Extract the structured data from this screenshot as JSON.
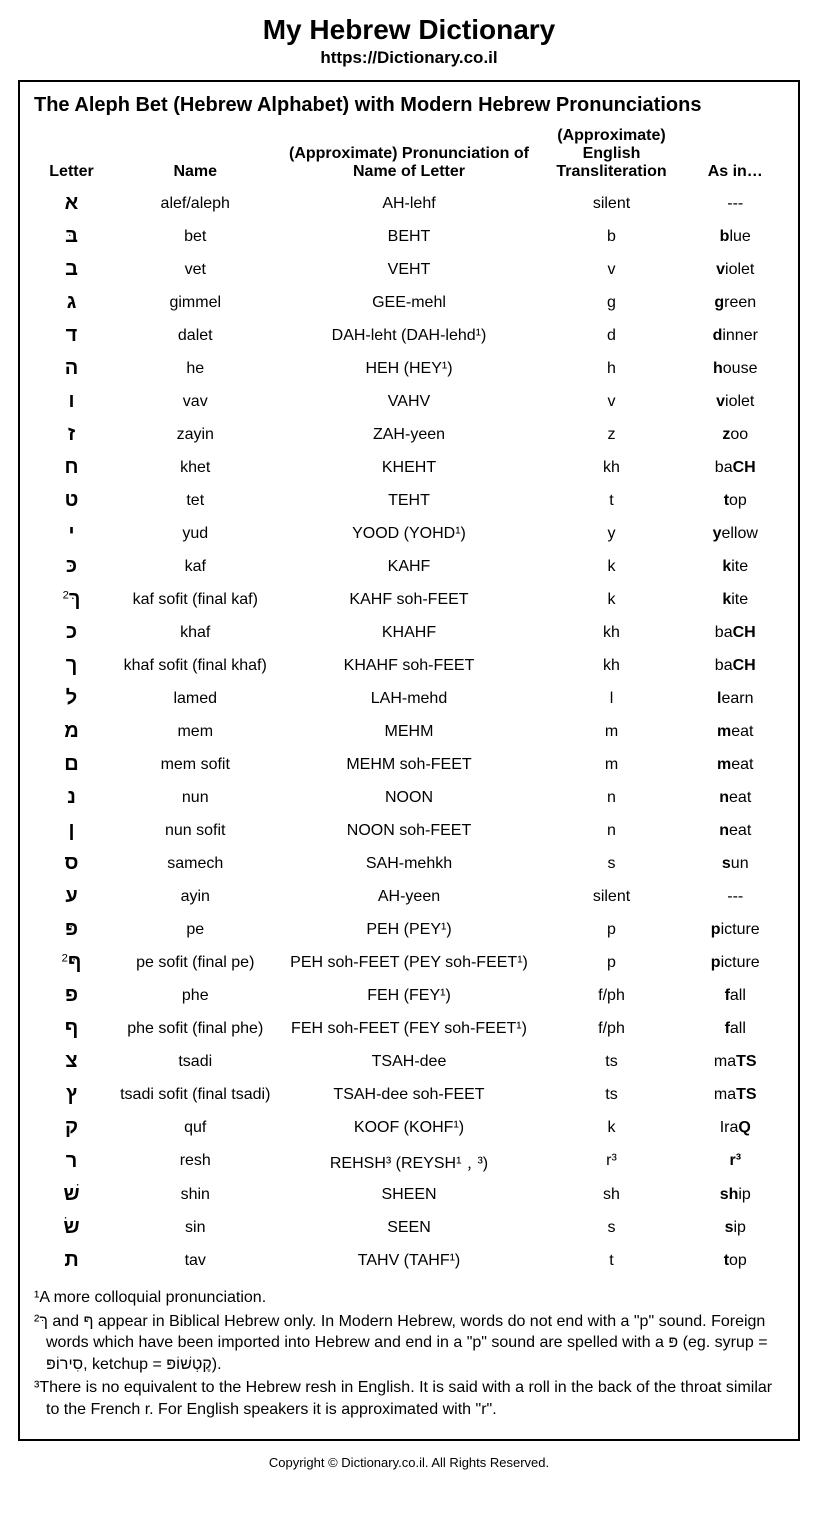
{
  "header": {
    "title": "My Hebrew Dictionary",
    "subtitle": "https://Dictionary.co.il"
  },
  "box": {
    "title": "The Aleph Bet (Hebrew Alphabet) with Modern Hebrew Pronunciations"
  },
  "columns": {
    "letter": "Letter",
    "name": "Name",
    "pron": "(Approximate) Pronunciation of Name of Letter",
    "trans": "(Approximate) English Transliteration",
    "asin": "As in…"
  },
  "rows": [
    {
      "letter": "א",
      "sup": "",
      "name": "alef/aleph",
      "pron": "AH-lehf",
      "trans": "silent",
      "asin_pre": "---",
      "asin_b": "",
      "asin_post": ""
    },
    {
      "letter": "בּ",
      "sup": "",
      "name": "bet",
      "pron": "BEHT",
      "trans": "b",
      "asin_pre": "",
      "asin_b": "b",
      "asin_post": "lue"
    },
    {
      "letter": "ב",
      "sup": "",
      "name": "vet",
      "pron": "VEHT",
      "trans": "v",
      "asin_pre": "",
      "asin_b": "v",
      "asin_post": "iolet"
    },
    {
      "letter": "ג",
      "sup": "",
      "name": "gimmel",
      "pron": "GEE-mehl",
      "trans": "g",
      "asin_pre": "",
      "asin_b": "g",
      "asin_post": "reen"
    },
    {
      "letter": "ד",
      "sup": "",
      "name": "dalet",
      "pron": "DAH-leht (DAH-lehd¹)",
      "trans": "d",
      "asin_pre": "",
      "asin_b": "d",
      "asin_post": "inner"
    },
    {
      "letter": "ה",
      "sup": "",
      "name": "he",
      "pron": "HEH (HEY¹)",
      "trans": "h",
      "asin_pre": "",
      "asin_b": "h",
      "asin_post": "ouse"
    },
    {
      "letter": "ו",
      "sup": "",
      "name": "vav",
      "pron": "VAHV",
      "trans": "v",
      "asin_pre": "",
      "asin_b": "v",
      "asin_post": "iolet"
    },
    {
      "letter": "ז",
      "sup": "",
      "name": "zayin",
      "pron": "ZAH-yeen",
      "trans": "z",
      "asin_pre": "",
      "asin_b": "z",
      "asin_post": "oo"
    },
    {
      "letter": "ח",
      "sup": "",
      "name": "khet",
      "pron": "KHEHT",
      "trans": "kh",
      "asin_pre": "ba",
      "asin_b": "CH",
      "asin_post": ""
    },
    {
      "letter": "ט",
      "sup": "",
      "name": "tet",
      "pron": "TEHT",
      "trans": "t",
      "asin_pre": "",
      "asin_b": "t",
      "asin_post": "op"
    },
    {
      "letter": "י",
      "sup": "",
      "name": "yud",
      "pron": "YOOD (YOHD¹)",
      "trans": "y",
      "asin_pre": "",
      "asin_b": "y",
      "asin_post": "ellow"
    },
    {
      "letter": "כּ",
      "sup": "",
      "name": "kaf",
      "pron": "KAHF",
      "trans": "k",
      "asin_pre": "",
      "asin_b": "k",
      "asin_post": "ite"
    },
    {
      "letter": "ךּ",
      "sup": "2",
      "name": "kaf sofit (final kaf)",
      "pron": "KAHF soh-FEET",
      "trans": "k",
      "asin_pre": "",
      "asin_b": "k",
      "asin_post": "ite"
    },
    {
      "letter": "כ",
      "sup": "",
      "name": "khaf",
      "pron": "KHAHF",
      "trans": "kh",
      "asin_pre": "ba",
      "asin_b": "CH",
      "asin_post": ""
    },
    {
      "letter": "ך",
      "sup": "",
      "name": "khaf sofit (final khaf)",
      "pron": "KHAHF soh-FEET",
      "trans": "kh",
      "asin_pre": "ba",
      "asin_b": "CH",
      "asin_post": ""
    },
    {
      "letter": "ל",
      "sup": "",
      "name": "lamed",
      "pron": "LAH-mehd",
      "trans": "l",
      "asin_pre": "",
      "asin_b": "l",
      "asin_post": "earn"
    },
    {
      "letter": "מ",
      "sup": "",
      "name": "mem",
      "pron": "MEHM",
      "trans": "m",
      "asin_pre": "",
      "asin_b": "m",
      "asin_post": "eat"
    },
    {
      "letter": "ם",
      "sup": "",
      "name": "mem sofit",
      "pron": "MEHM soh-FEET",
      "trans": "m",
      "asin_pre": "",
      "asin_b": "m",
      "asin_post": "eat"
    },
    {
      "letter": "נ",
      "sup": "",
      "name": "nun",
      "pron": "NOON",
      "trans": "n",
      "asin_pre": "",
      "asin_b": "n",
      "asin_post": "eat"
    },
    {
      "letter": "ן",
      "sup": "",
      "name": "nun sofit",
      "pron": "NOON soh-FEET",
      "trans": "n",
      "asin_pre": "",
      "asin_b": "n",
      "asin_post": "eat"
    },
    {
      "letter": "ס",
      "sup": "",
      "name": "samech",
      "pron": "SAH-mehkh",
      "trans": "s",
      "asin_pre": "",
      "asin_b": "s",
      "asin_post": "un"
    },
    {
      "letter": "ע",
      "sup": "",
      "name": "ayin",
      "pron": "AH-yeen",
      "trans": "silent",
      "asin_pre": "---",
      "asin_b": "",
      "asin_post": ""
    },
    {
      "letter": "פּ",
      "sup": "",
      "name": "pe",
      "pron": "PEH (PEY¹)",
      "trans": "p",
      "asin_pre": "",
      "asin_b": "p",
      "asin_post": "icture"
    },
    {
      "letter": "ףּ",
      "sup": "2",
      "name": "pe sofit (final pe)",
      "pron": "PEH soh-FEET (PEY soh-FEET¹)",
      "trans": "p",
      "asin_pre": "",
      "asin_b": "p",
      "asin_post": "icture"
    },
    {
      "letter": "פ",
      "sup": "",
      "name": "phe",
      "pron": "FEH (FEY¹)",
      "trans": "f/ph",
      "asin_pre": "",
      "asin_b": "f",
      "asin_post": "all"
    },
    {
      "letter": "ף",
      "sup": "",
      "name": "phe sofit (final phe)",
      "pron": "FEH soh-FEET (FEY soh-FEET¹)",
      "trans": "f/ph",
      "asin_pre": "",
      "asin_b": "f",
      "asin_post": "all"
    },
    {
      "letter": "צ",
      "sup": "",
      "name": "tsadi",
      "pron": "TSAH-dee",
      "trans": "ts",
      "asin_pre": "ma",
      "asin_b": "TS",
      "asin_post": ""
    },
    {
      "letter": "ץ",
      "sup": "",
      "name": "tsadi sofit (final tsadi)",
      "pron": "TSAH-dee soh-FEET",
      "trans": "ts",
      "asin_pre": "ma",
      "asin_b": "TS",
      "asin_post": ""
    },
    {
      "letter": "ק",
      "sup": "",
      "name": "quf",
      "pron": "KOOF (KOHF¹)",
      "trans": "k",
      "asin_pre": "Ira",
      "asin_b": "Q",
      "asin_post": ""
    },
    {
      "letter": "ר",
      "sup": "",
      "name": "resh",
      "pron": "REHSH³ (REYSH¹﹐³)",
      "trans": "r³",
      "asin_pre": "",
      "asin_b": "r³",
      "asin_post": ""
    },
    {
      "letter": "שׁ",
      "sup": "",
      "name": "shin",
      "pron": "SHEEN",
      "trans": "sh",
      "asin_pre": "",
      "asin_b": "sh",
      "asin_post": "ip"
    },
    {
      "letter": "שׂ",
      "sup": "",
      "name": "sin",
      "pron": "SEEN",
      "trans": "s",
      "asin_pre": "",
      "asin_b": "s",
      "asin_post": "ip"
    },
    {
      "letter": "ת",
      "sup": "",
      "name": "tav",
      "pron": "TAHV (TAHF¹)",
      "trans": "t",
      "asin_pre": "",
      "asin_b": "t",
      "asin_post": "op"
    }
  ],
  "footnotes": {
    "n1": "¹A more colloquial pronunciation.",
    "n2": "²ךּ and ףּ appear in Biblical Hebrew only. In Modern Hebrew, words do not end with a \"p\" sound. Foreign words which have been imported into Hebrew and end in a \"p\" sound are spelled with a פּ (eg. syrup = סִירוֹפּ, ketchup = קֶטְשׁוֹפּ).",
    "n3": "³There is no equivalent to the Hebrew resh in English. It is said with a roll in the back of the throat similar to the French r. For English speakers it is approximated with \"r\"."
  },
  "copyright": "Copyright © Dictionary.co.il. All Rights Reserved."
}
